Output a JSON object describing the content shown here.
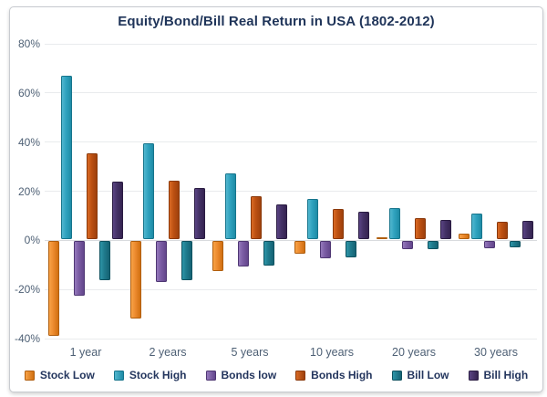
{
  "title": "Equity/Bond/Bill Real Return in USA (1802-2012)",
  "y_axis": {
    "tick_labels": [
      "80%",
      "60%",
      "40%",
      "20%",
      "0%",
      "-20%",
      "-40%"
    ]
  },
  "chart_data": {
    "type": "bar",
    "title": "Equity/Bond/Bill Real Return in USA (1802-2012)",
    "categories": [
      "1 year",
      "2 years",
      "5 years",
      "10 years",
      "20 years",
      "30 years"
    ],
    "series": [
      {
        "name": "Stock Low",
        "color": "#EC8A2E",
        "color_light": "#F8A347",
        "color_dark": "#D06F10",
        "border": "#B05E0E",
        "values": [
          -38.6,
          -31.6,
          -12.0,
          -5.0,
          1.0,
          2.5
        ]
      },
      {
        "name": "Stock High",
        "color": "#2FA2BE",
        "color_light": "#52B7CF",
        "color_dark": "#1E8BA6",
        "border": "#17758C",
        "values": [
          66.6,
          39.0,
          26.8,
          16.5,
          12.6,
          10.5
        ]
      },
      {
        "name": "Bonds low",
        "color": "#7A5CA3",
        "color_light": "#9579BC",
        "color_dark": "#63468C",
        "border": "#4F3773",
        "values": [
          -22.0,
          -16.5,
          -10.3,
          -6.8,
          -3.2,
          -3.0
        ]
      },
      {
        "name": "Bonds High",
        "color": "#BC5012",
        "color_light": "#D96A24",
        "color_dark": "#9E400C",
        "border": "#8A380A",
        "values": [
          35.1,
          24.0,
          17.5,
          12.4,
          8.8,
          7.3
        ]
      },
      {
        "name": "Bill Low",
        "color": "#1F7A8C",
        "color_light": "#2E95A8",
        "color_dark": "#156273",
        "border": "#0F5260",
        "values": [
          -16.0,
          -16.0,
          -10.0,
          -6.4,
          -3.3,
          -2.4
        ]
      },
      {
        "name": "Bill High",
        "color": "#443266",
        "color_light": "#5A4483",
        "color_dark": "#352350",
        "border": "#2A1C42",
        "values": [
          23.6,
          21.0,
          14.3,
          11.4,
          7.8,
          7.5
        ]
      }
    ],
    "ylim": [
      -40,
      80
    ],
    "y_step": 20,
    "grid": true,
    "legend_position": "bottom",
    "xlabel": "",
    "ylabel": ""
  },
  "colors": {
    "title": "#1F3459",
    "axis_label": "#4E6075",
    "legend_label": "#24365E",
    "gridline": "#E9EBED",
    "zero_line": "#D9DBDE",
    "frame_border": "#C8CBD0"
  }
}
